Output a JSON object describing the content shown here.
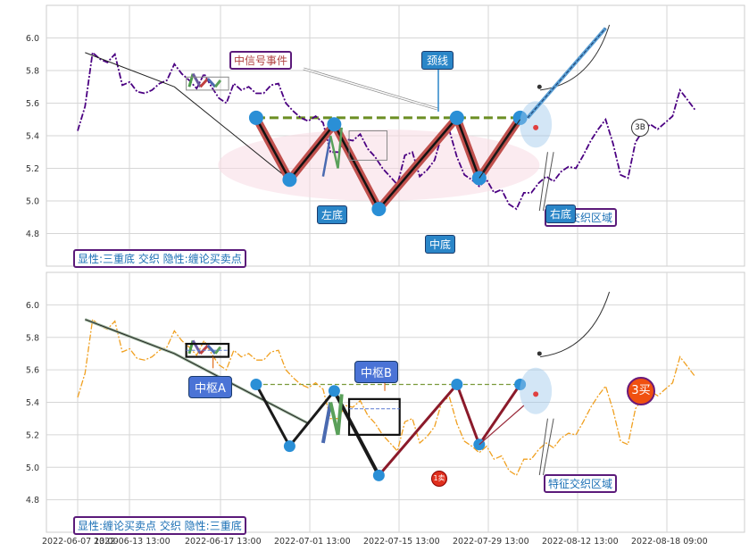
{
  "chart_data": [
    {
      "type": "line",
      "panel": "top",
      "ylim": [
        4.6,
        6.2
      ],
      "y_ticks": [
        "6.0",
        "5.8",
        "5.6",
        "5.4",
        "5.2",
        "5.0",
        "4.8"
      ],
      "grid": true,
      "price_color": "#4b0082",
      "price_style": "dash-dot",
      "series": [
        {
          "values": [
            5.43,
            5.58,
            5.91,
            5.87,
            5.85,
            5.9,
            5.71,
            5.73,
            5.67,
            5.66,
            5.68,
            5.72,
            5.74,
            5.84,
            5.78,
            5.74,
            5.69,
            5.78,
            5.7,
            5.63,
            5.6,
            5.72,
            5.68,
            5.7,
            5.66,
            5.66,
            5.71,
            5.72,
            5.6,
            5.55,
            5.51,
            5.49,
            5.52,
            5.48,
            5.3,
            5.3,
            5.38,
            5.37,
            5.41,
            5.32,
            5.27,
            5.2,
            5.15,
            5.1,
            5.28,
            5.3,
            5.15,
            5.19,
            5.25,
            5.41,
            5.43,
            5.27,
            5.16,
            5.13,
            5.09,
            5.13,
            5.05,
            5.07,
            4.98,
            4.95,
            5.05,
            5.05,
            5.11,
            5.15,
            5.12,
            5.18,
            5.21,
            5.2,
            5.28,
            5.37,
            5.44,
            5.5,
            5.35,
            5.16,
            5.14,
            5.36,
            5.43,
            5.47,
            5.44,
            5.48,
            5.52,
            5.68,
            5.62,
            5.56
          ]
        }
      ],
      "overlays": {
        "neckline_y": 5.51,
        "w_pattern": [
          [
            24.0,
            5.51
          ],
          [
            28.5,
            5.13
          ],
          [
            34.5,
            5.47
          ],
          [
            40.5,
            4.95
          ],
          [
            51.0,
            5.51
          ],
          [
            54.0,
            5.14
          ],
          [
            59.5,
            5.51
          ]
        ],
        "trend_line": [
          [
            1,
            5.91
          ],
          [
            13,
            5.7
          ],
          [
            28.5,
            5.13
          ]
        ],
        "breakout_line": [
          [
            60.5,
            5.51
          ],
          [
            71,
            6.06
          ]
        ]
      },
      "labels": {
        "left_bottom": "左底",
        "mid_bottom": "中底",
        "right_bottom": "右底",
        "neckline": "颈线",
        "mid_signal": "中信号事件",
        "overlap_zone": "交织区域",
        "badge": "3B",
        "footer": "显性:三重底 交织 隐性:缠论买卖点"
      }
    },
    {
      "type": "line",
      "panel": "bottom",
      "ylim": [
        4.6,
        6.2
      ],
      "y_ticks": [
        "6.0",
        "5.8",
        "5.6",
        "5.4",
        "5.2",
        "5.0",
        "4.8"
      ],
      "grid": true,
      "price_color": "#f0a020",
      "price_style": "dash-dot",
      "x_ticks": [
        "2022-06-07 13:00",
        "2022-06-13 13:00",
        "2022-06-17 13:00",
        "2022-07-01 13:00",
        "2022-07-15 13:00",
        "2022-07-29 13:00",
        "2022-08-12 13:00",
        "2022-08-18 09:00"
      ],
      "labels": {
        "zhongshu_a": "中枢A",
        "zhongshu_b": "中枢B",
        "buy1": "1卖",
        "buy3": "3买",
        "feature_zone": "特征交织区域",
        "footer": "显性:缠论买卖点 交织 隐性:三重底"
      },
      "overlays": {
        "neckline_y": 5.51,
        "bi_lines": [
          [
            24.0,
            5.51
          ],
          [
            28.5,
            5.13
          ],
          [
            34.5,
            5.47
          ],
          [
            40.5,
            4.95
          ],
          [
            51.0,
            5.51
          ],
          [
            54.0,
            5.14
          ],
          [
            59.5,
            5.51
          ]
        ],
        "trend_line": [
          [
            1,
            5.91
          ],
          [
            13,
            5.7
          ],
          [
            31,
            5.27
          ]
        ],
        "zhongshu_a_box": [
          [
            13,
            5.76
          ],
          [
            17,
            5.69
          ]
        ],
        "zhongshu_b_box": [
          [
            31,
            5.42
          ],
          [
            36,
            5.2
          ]
        ]
      }
    }
  ]
}
